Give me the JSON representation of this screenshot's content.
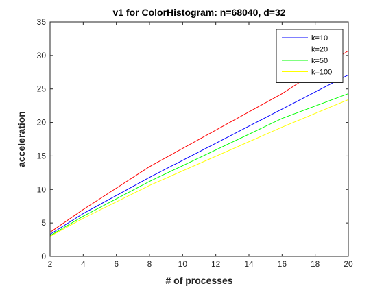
{
  "chart_data": {
    "type": "line",
    "title": "v1 for ColorHistogram: n=68040, d=32",
    "xlabel": "# of processes",
    "ylabel": "acceleration",
    "xlim": [
      2,
      20
    ],
    "ylim": [
      0,
      35
    ],
    "xticks": [
      2,
      4,
      6,
      8,
      10,
      12,
      14,
      16,
      18,
      20
    ],
    "yticks": [
      0,
      5,
      10,
      15,
      20,
      25,
      30,
      35
    ],
    "grid": false,
    "legend_position": "top-right",
    "x": [
      2,
      4,
      8,
      16,
      20
    ],
    "series": [
      {
        "name": "k=10",
        "color": "#0000ff",
        "values": [
          3.3,
          6.4,
          11.8,
          22.0,
          27.1
        ]
      },
      {
        "name": "k=20",
        "color": "#ff0000",
        "values": [
          3.6,
          7.0,
          13.4,
          24.3,
          30.7
        ]
      },
      {
        "name": "k=50",
        "color": "#00ff00",
        "values": [
          3.1,
          6.0,
          11.2,
          20.6,
          24.3
        ]
      },
      {
        "name": "k=100",
        "color": "#ffff00",
        "values": [
          3.0,
          5.7,
          10.6,
          19.3,
          23.4
        ]
      }
    ]
  }
}
